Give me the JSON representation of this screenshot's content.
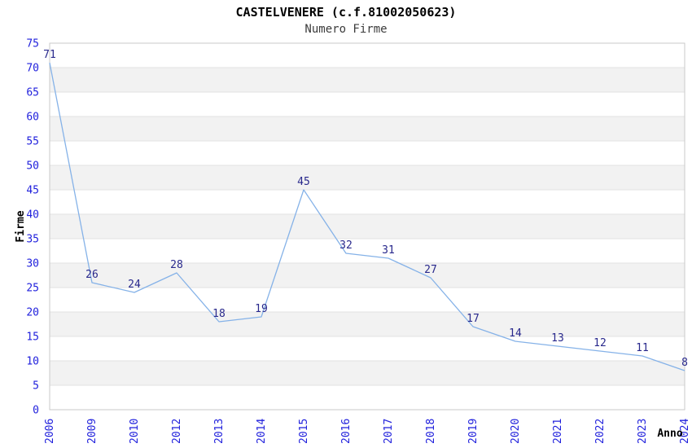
{
  "chart_data": {
    "type": "line",
    "title": "CASTELVENERE (c.f.81002050623)",
    "subtitle": "Numero Firme",
    "xlabel": "Anno",
    "ylabel": "Firme",
    "categories": [
      "2006",
      "2009",
      "2010",
      "2012",
      "2013",
      "2014",
      "2015",
      "2016",
      "2017",
      "2018",
      "2019",
      "2020",
      "2021",
      "2022",
      "2023",
      "2024"
    ],
    "values": [
      71,
      26,
      24,
      28,
      18,
      19,
      45,
      32,
      31,
      27,
      17,
      14,
      13,
      12,
      11,
      8
    ],
    "ylim": [
      0,
      75
    ],
    "ytick_step": 5,
    "grid": "alternating-bands",
    "legend": "none",
    "colors": {
      "line": "#85b2e8",
      "tick_label": "#1f1fdc",
      "data_label": "#28288c",
      "band": "#f2f2f2",
      "grid_line": "#e2e2e2",
      "border": "#c9c9c9",
      "title": "#000000",
      "subtitle": "#3c3c3c",
      "axis_label": "#000000"
    }
  }
}
